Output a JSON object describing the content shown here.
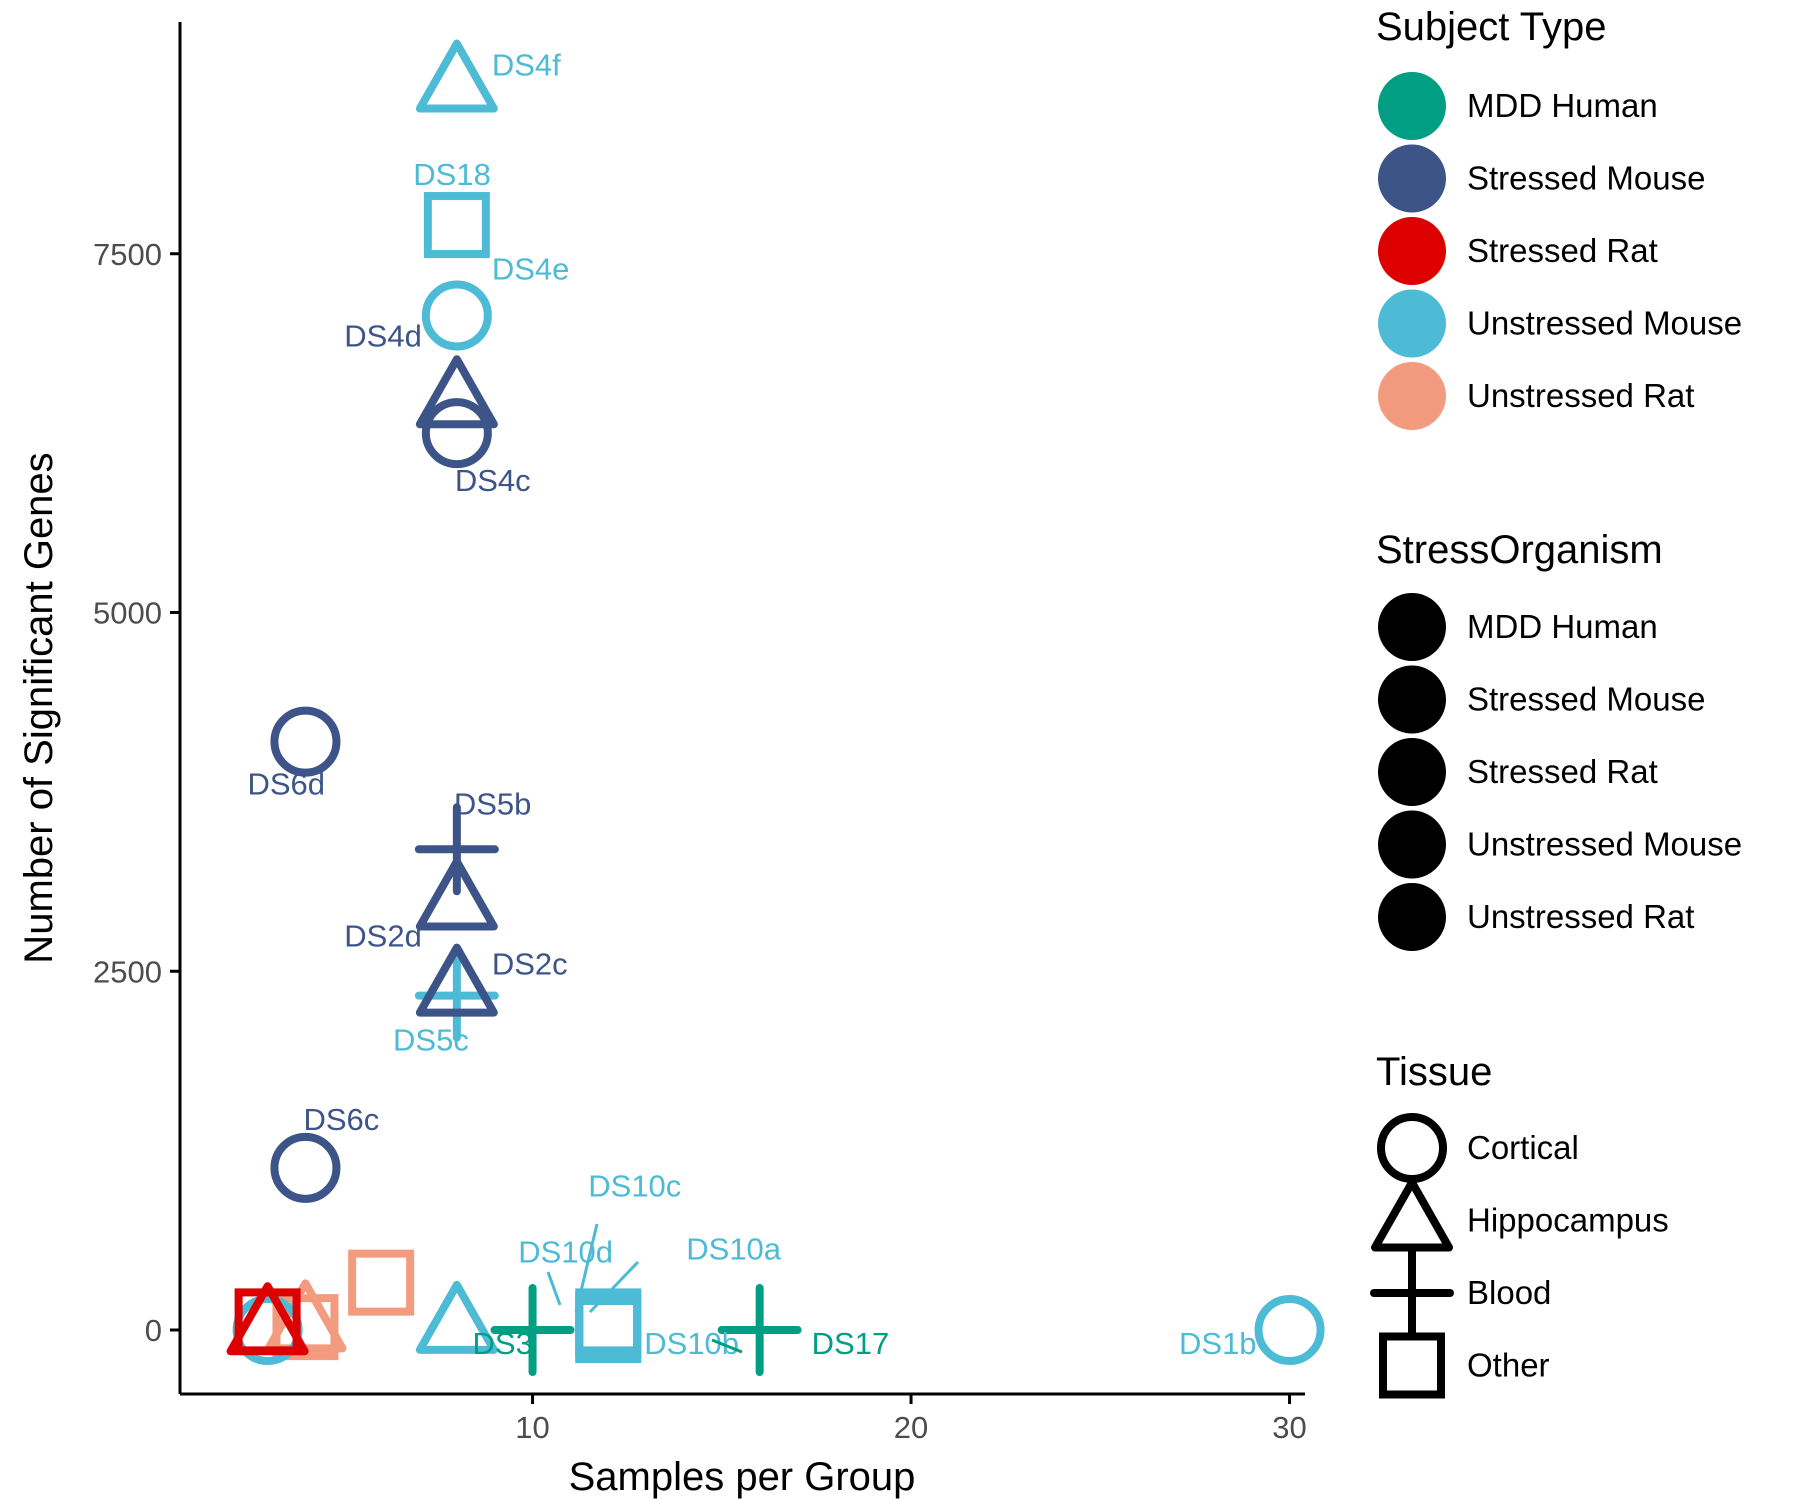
{
  "chart_data": {
    "type": "scatter",
    "xlabel": "Samples per Group",
    "ylabel": "Number of Significant Genes",
    "xlim": [
      1.5,
      31.5
    ],
    "ylim": [
      -430,
      9200
    ],
    "x_ticks": [
      10,
      20,
      30
    ],
    "y_ticks": [
      0,
      2500,
      5000,
      7500
    ],
    "grid": false,
    "legend_position": "right",
    "colors": {
      "MDD Human": "#009E82",
      "Stressed Mouse": "#3C5488",
      "Stressed Rat": "#DC0000",
      "Unstressed Mouse": "#4DBBD5",
      "Unstressed Rat": "#F39B7F"
    },
    "points": [
      {
        "label": "DS4f",
        "x": 8,
        "y": 8700,
        "group": "Unstressed Mouse",
        "tissue": "Hippocampus"
      },
      {
        "label": "DS18",
        "x": 8,
        "y": 7700,
        "group": "Unstressed Mouse",
        "tissue": "Other"
      },
      {
        "label": "DS4e",
        "x": 8,
        "y": 7070,
        "group": "Unstressed Mouse",
        "tissue": "Cortical"
      },
      {
        "label": "DS4d",
        "x": 8,
        "y": 6500,
        "group": "Stressed Mouse",
        "tissue": "Hippocampus"
      },
      {
        "label": "DS4c",
        "x": 8,
        "y": 6250,
        "group": "Stressed Mouse",
        "tissue": "Cortical"
      },
      {
        "label": "DS6d",
        "x": 4,
        "y": 4100,
        "group": "Stressed Mouse",
        "tissue": "Cortical"
      },
      {
        "label": "DS5b",
        "x": 8,
        "y": 3350,
        "group": "Stressed Mouse",
        "tissue": "Blood"
      },
      {
        "label": "DS2d",
        "x": 8,
        "y": 3000,
        "group": "Stressed Mouse",
        "tissue": "Hippocampus"
      },
      {
        "label": "DS2c",
        "x": 8,
        "y": 2400,
        "group": "Stressed Mouse",
        "tissue": "Hippocampus"
      },
      {
        "label": "DS5c",
        "x": 8,
        "y": 2330,
        "group": "Unstressed Mouse",
        "tissue": "Blood"
      },
      {
        "label": "DS6c",
        "x": 4,
        "y": 1130,
        "group": "Stressed Mouse",
        "tissue": "Cortical"
      },
      {
        "label": "DS10c",
        "x": 12,
        "y": 60,
        "group": "Unstressed Mouse",
        "tissue": "Other"
      },
      {
        "label": "DS10d",
        "x": 12,
        "y": 30,
        "group": "Unstressed Mouse",
        "tissue": "Other"
      },
      {
        "label": "DS10a",
        "x": 12,
        "y": 40,
        "group": "Unstressed Mouse",
        "tissue": "Other"
      },
      {
        "label": "DS10b",
        "x": 12,
        "y": 0,
        "group": "Unstressed Mouse",
        "tissue": "Other"
      },
      {
        "label": "DS3",
        "x": 10,
        "y": 0,
        "group": "MDD Human",
        "tissue": "Blood"
      },
      {
        "label": "DS17",
        "x": 16,
        "y": 0,
        "group": "MDD Human",
        "tissue": "Blood"
      },
      {
        "label": "DS1b",
        "x": 30,
        "y": 0,
        "group": "Unstressed Mouse",
        "tissue": "Cortical"
      },
      {
        "label": "",
        "x": 8,
        "y": 50,
        "group": "Unstressed Mouse",
        "tissue": "Hippocampus"
      },
      {
        "label": "",
        "x": 6,
        "y": 330,
        "group": "Unstressed Rat",
        "tissue": "Other"
      },
      {
        "label": "",
        "x": 4,
        "y": 20,
        "group": "Unstressed Rat",
        "tissue": "Other"
      },
      {
        "label": "",
        "x": 4,
        "y": 60,
        "group": "Unstressed Rat",
        "tissue": "Hippocampus"
      },
      {
        "label": "",
        "x": 3,
        "y": 0,
        "group": "Unstressed Mouse",
        "tissue": "Cortical"
      },
      {
        "label": "",
        "x": 3,
        "y": 60,
        "group": "Stressed Rat",
        "tissue": "Other"
      },
      {
        "label": "",
        "x": 3,
        "y": 40,
        "group": "Stressed Rat",
        "tissue": "Hippocampus"
      }
    ]
  },
  "legend": {
    "subject_type": {
      "title": "Subject Type",
      "items": [
        "MDD Human",
        "Stressed Mouse",
        "Stressed Rat",
        "Unstressed Mouse",
        "Unstressed Rat"
      ]
    },
    "stress_organism": {
      "title": "StressOrganism",
      "items": [
        "MDD Human",
        "Stressed Mouse",
        "Stressed Rat",
        "Unstressed Mouse",
        "Unstressed Rat"
      ]
    },
    "tissue": {
      "title": "Tissue",
      "items": [
        "Cortical",
        "Hippocampus",
        "Blood",
        "Other"
      ]
    }
  }
}
